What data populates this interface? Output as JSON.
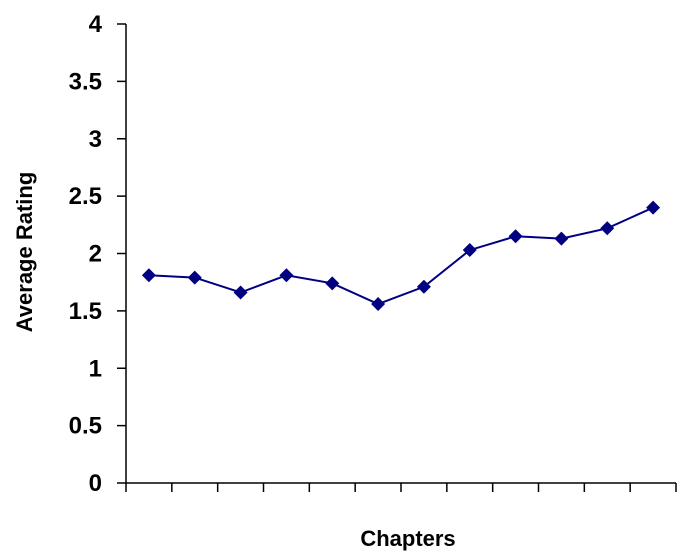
{
  "chart_data": {
    "type": "line",
    "title": "",
    "xlabel": "Chapters",
    "ylabel": "Average Rating",
    "ylim": [
      0,
      4
    ],
    "yticks": [
      "0",
      "0.5",
      "1",
      "1.5",
      "2",
      "2.5",
      "3",
      "3.5",
      "4"
    ],
    "grid": false,
    "legend": "none",
    "marker": "diamond",
    "series_color": "#000080",
    "axis_color": "#000000",
    "x": [
      1,
      2,
      3,
      4,
      5,
      6,
      7,
      8,
      9,
      10,
      11,
      12
    ],
    "series": [
      {
        "values": [
          1.81,
          1.79,
          1.66,
          1.81,
          1.74,
          1.56,
          1.71,
          2.03,
          2.15,
          2.13,
          2.22,
          2.4
        ]
      }
    ]
  }
}
